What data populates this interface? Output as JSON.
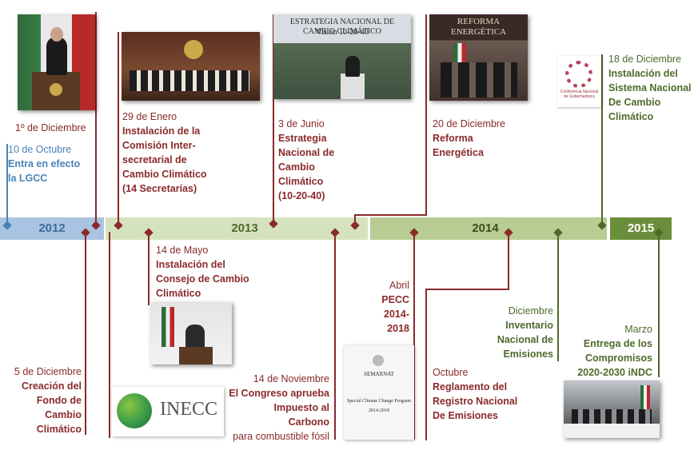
{
  "colors": {
    "red": "#8a2a2a",
    "blue": "#4a82b8",
    "green_dark": "#4e6a2a",
    "band_2012": "#a9c4e2",
    "band_2013": "#d5e2bf",
    "band_2014": "#b8cc94",
    "band_2015": "#6b8e3a"
  },
  "timeline": {
    "years": [
      "2012",
      "2013",
      "2014",
      "2015"
    ]
  },
  "events": {
    "e_oct2012": {
      "date": "10 de Octubre",
      "line1": "Entra en efecto",
      "line2": "la LGCC"
    },
    "e_dec2012": {
      "date": "1º de Diciembre"
    },
    "e_jan2013": {
      "date": "29 de Enero",
      "line1": "Instalación de la",
      "line2": "Comisión Inter-",
      "line3": "secretarial de",
      "line4": "Cambio Climático",
      "line5": "(14 Secretarías)"
    },
    "e_jun2013": {
      "date": "3 de Junio",
      "line1": "Estrategia",
      "line2": "Nacional de",
      "line3": "Cambio",
      "line4": "Climático",
      "line5": "(10-20-40)"
    },
    "e_dec2013r": {
      "date": "20 de Diciembre",
      "line1": "Reforma",
      "line2": "Energética"
    },
    "e_dec2014": {
      "date": "18 de Diciembre",
      "line1": "Instalación del",
      "line2": "Sistema Nacional",
      "line3": "De Cambio",
      "line4": "Climático"
    },
    "e_dec2012b": {
      "date": "5 de Diciembre",
      "line1": "Creación del",
      "line2": "Fondo de",
      "line3": "Cambio",
      "line4": "Climático"
    },
    "e_may2013": {
      "date": "14 de Mayo",
      "line1": "Instalación del",
      "line2": "Consejo de Cambio",
      "line3": "Climático"
    },
    "e_nov2013": {
      "date": "14 de Noviembre",
      "line1": "El Congreso aprueba",
      "line2": "Impuesto al",
      "line3": "Carbono",
      "line4": "para combustible fósil"
    },
    "e_apr2014": {
      "date": "Abril",
      "line1": "PECC",
      "line2": "2014-",
      "line3": "2018"
    },
    "e_oct2014": {
      "date": "Octubre",
      "line1": "Reglamento del",
      "line2": "Registro Nacional",
      "line3": "De Emisiones"
    },
    "e_dec2014b": {
      "date": "Diciembre",
      "line1": "Inventario",
      "line2": "Nacional de",
      "line3": "Emisiones"
    },
    "e_mar2015": {
      "date": "Marzo",
      "line1": "Entrega de los",
      "line2": "Compromisos",
      "line3": "2020-2030 iNDC"
    }
  },
  "images": {
    "strategy_banner": {
      "line1": "ESTRATEGIA NACIONAL DE CAMBIO CLIMÁTICO",
      "line2": "Visión 10-20-40"
    },
    "reform_banner": {
      "line1": "REFORMA ENERGÉTICA"
    },
    "inecc_logo": {
      "text": "INECC"
    },
    "pecc_cover": {
      "line1": "SEMARNAT",
      "line2": "Special Climate Change Program",
      "line3": "2014-2018"
    },
    "conference_logo": {
      "text": "Conferencia Nacional de Gobernadores"
    }
  },
  "icons": [
    "flag-icon",
    "eagle-emblem-icon",
    "podium-icon"
  ]
}
